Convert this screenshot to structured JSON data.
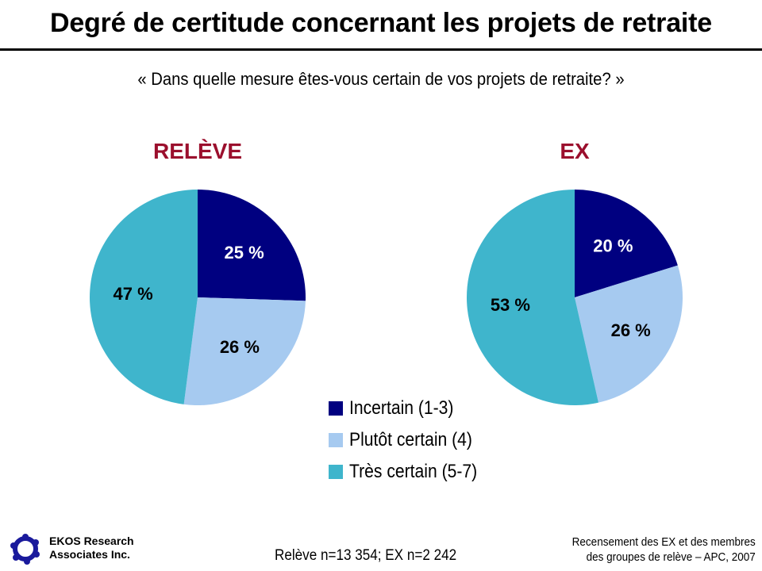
{
  "header": {
    "title": "Degré de certitude concernant les projets de retraite",
    "question": "« Dans quelle mesure êtes-vous certain de vos projets de retraite? »"
  },
  "colors": {
    "incertain": "#000080",
    "plutot_certain": "#a6caf0",
    "tres_certain": "#3fb5cc",
    "pie_title": "#9b0f2d"
  },
  "chart_data": [
    {
      "type": "pie",
      "title": "RELÈVE",
      "categories": [
        "Incertain (1-3)",
        "Plutôt certain (4)",
        "Très certain (5-7)"
      ],
      "values": [
        25,
        26,
        47
      ],
      "labels": [
        "25 %",
        "26 %",
        "47 %"
      ],
      "unit": "%"
    },
    {
      "type": "pie",
      "title": "EX",
      "categories": [
        "Incertain (1-3)",
        "Plutôt certain (4)",
        "Très certain (5-7)"
      ],
      "values": [
        20,
        26,
        53
      ],
      "labels": [
        "20 %",
        "26 %",
        "53 %"
      ],
      "unit": "%"
    }
  ],
  "legend": {
    "items": [
      {
        "label": "Incertain (1-3)",
        "color": "#000080"
      },
      {
        "label": "Plutôt certain (4)",
        "color": "#a6caf0"
      },
      {
        "label": "Très certain (5-7)",
        "color": "#3fb5cc"
      }
    ]
  },
  "footer": {
    "company_line1": "EKOS Research",
    "company_line2": "Associates Inc.",
    "sample": "Relève n=13 354; EX n=2 242",
    "source_line1": "Recensement des EX et des membres",
    "source_line2": "des groupes de relève – APC, 2007"
  }
}
